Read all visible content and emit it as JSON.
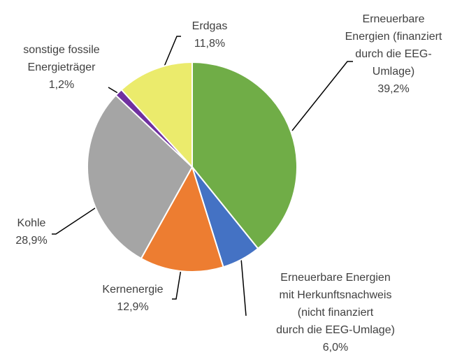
{
  "chart_data": {
    "type": "pie",
    "categories": [
      [
        "Erneuerbare",
        "Energien (finanziert",
        "durch die EEG-",
        "Umlage)"
      ],
      [
        "Erneuerbare Energien",
        "mit Herkunftsnachweis",
        "(nicht finanziert",
        "durch die EEG-Umlage)"
      ],
      [
        "Kernenergie"
      ],
      [
        "Kohle"
      ],
      [
        "sonstige fossile",
        "Energieträger"
      ],
      [
        "Erdgas"
      ]
    ],
    "values": [
      39.2,
      6.0,
      12.9,
      28.9,
      1.2,
      11.8
    ],
    "value_labels": [
      "39,2%",
      "6,0%",
      "12,9%",
      "28,9%",
      "1,2%",
      "11,8%"
    ],
    "colors": [
      "#70ad47",
      "#4472c4",
      "#ed7d31",
      "#a5a5a5",
      "#7030a0",
      "#ebeb6c"
    ]
  }
}
